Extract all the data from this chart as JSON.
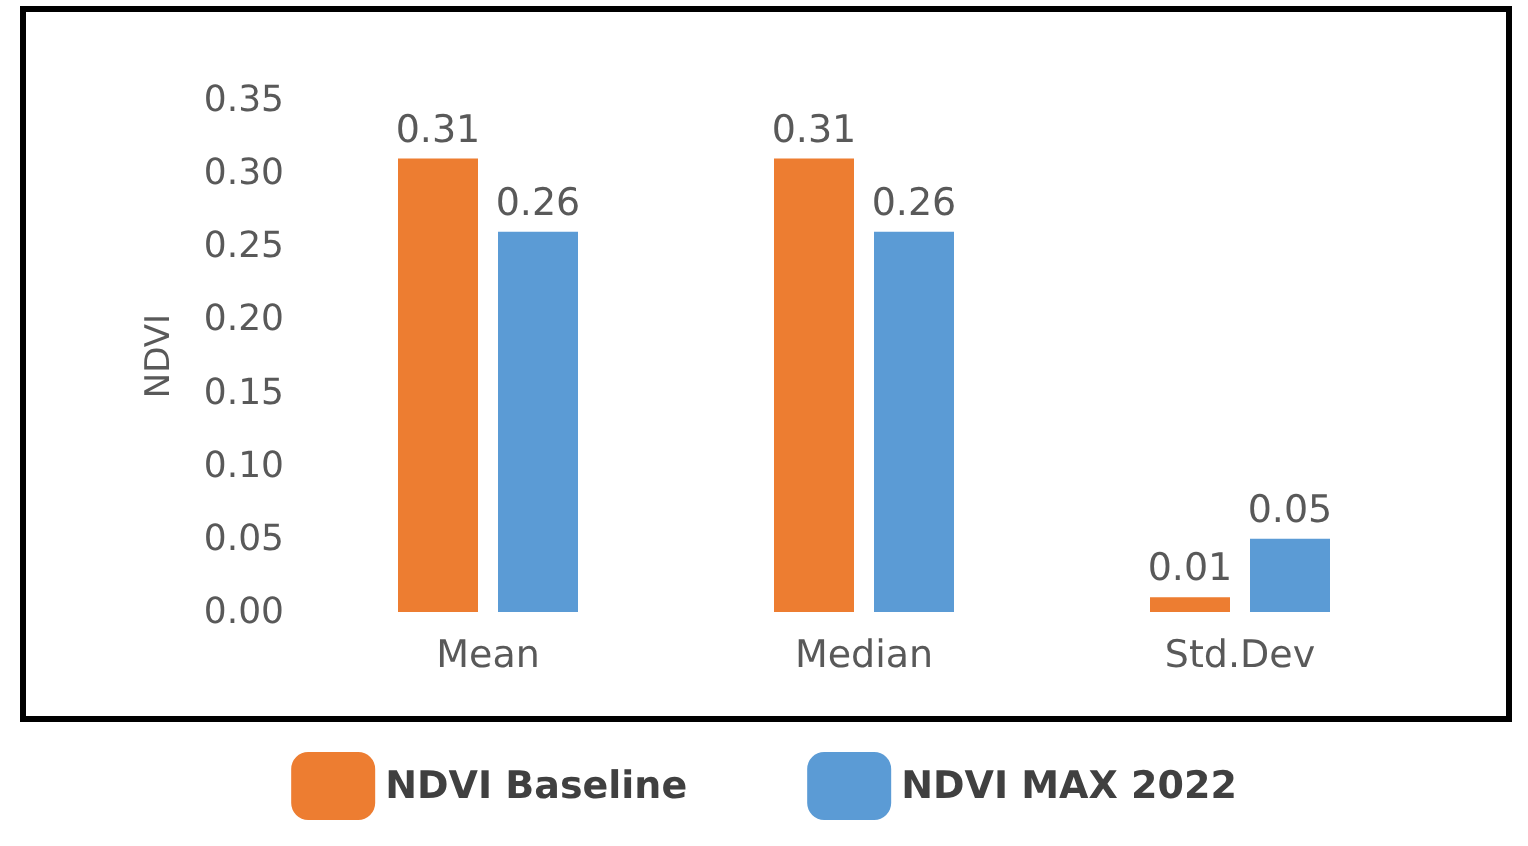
{
  "chart_data": {
    "type": "bar",
    "ylabel": "NDVI",
    "categories": [
      "Mean",
      "Median",
      "Std.Dev"
    ],
    "series": [
      {
        "name": "NDVI Baseline",
        "color": "#ed7d31",
        "values": [
          0.31,
          0.31,
          0.01
        ]
      },
      {
        "name": "NDVI MAX 2022",
        "color": "#5b9bd5",
        "values": [
          0.26,
          0.26,
          0.05
        ]
      }
    ],
    "ylim": [
      0,
      0.35
    ],
    "yticks": [
      {
        "value": 0,
        "label": "0.00"
      },
      {
        "value": 0.05,
        "label": "0.05"
      },
      {
        "value": 0.1,
        "label": "0.10"
      },
      {
        "value": 0.15,
        "label": "0.15"
      },
      {
        "value": 0.2,
        "label": "0.20"
      },
      {
        "value": 0.25,
        "label": "0.25"
      },
      {
        "value": 0.3,
        "label": "0.30"
      },
      {
        "value": 0.35,
        "label": "0.35"
      }
    ],
    "data_labels": true,
    "grid": false,
    "legend": "bottom"
  }
}
